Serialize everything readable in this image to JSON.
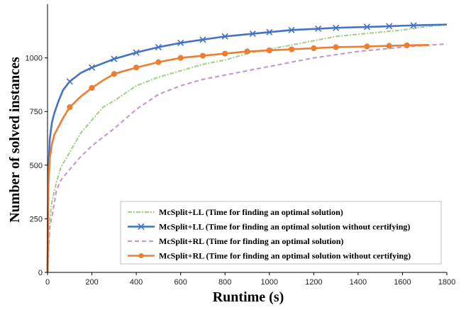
{
  "chart_data": {
    "type": "line",
    "xlabel": "Runtime (s)",
    "ylabel": "Number of solved instances",
    "xlim": [
      0,
      1800
    ],
    "ylim": [
      0,
      1250
    ],
    "x_ticks": [
      0,
      200,
      400,
      600,
      800,
      1000,
      1200,
      1400,
      1600,
      1800
    ],
    "y_ticks": [
      0,
      250,
      500,
      750,
      1000
    ],
    "grid": false,
    "legend_position": "bottom-right",
    "series": [
      {
        "name": "McSplit+LL (Time for finding an optimal solution)",
        "color": "#a8d08d",
        "style": "dash-dot",
        "marker": "none",
        "x": [
          0,
          10,
          20,
          40,
          60,
          100,
          150,
          200,
          250,
          300,
          400,
          500,
          600,
          700,
          800,
          900,
          1000,
          1100,
          1200,
          1300,
          1400,
          1500,
          1600,
          1700,
          1800
        ],
        "y": [
          0,
          250,
          330,
          420,
          490,
          560,
          650,
          710,
          770,
          800,
          870,
          910,
          940,
          970,
          990,
          1020,
          1040,
          1060,
          1080,
          1100,
          1110,
          1120,
          1130,
          1145,
          1155
        ]
      },
      {
        "name": "McSplit+LL (Time for finding an optimal solution without certifying)",
        "color": "#4472c4",
        "style": "solid",
        "marker": "x",
        "x": [
          0,
          2,
          5,
          10,
          20,
          30,
          50,
          70,
          100,
          150,
          200,
          250,
          300,
          350,
          400,
          500,
          600,
          700,
          800,
          900,
          1000,
          1100,
          1200,
          1300,
          1400,
          1500,
          1600,
          1700,
          1800
        ],
        "y": [
          0,
          300,
          500,
          620,
          700,
          740,
          800,
          850,
          890,
          930,
          955,
          975,
          995,
          1010,
          1025,
          1050,
          1070,
          1085,
          1100,
          1110,
          1120,
          1130,
          1135,
          1140,
          1143,
          1146,
          1150,
          1153,
          1155
        ],
        "marker_x": [
          100,
          200,
          300,
          400,
          500,
          600,
          700,
          800,
          925,
          1000,
          1100,
          1220,
          1300,
          1440,
          1540,
          1650
        ]
      },
      {
        "name": "McSplit+RL (Time for finding an optimal solution)",
        "color": "#c39bd3",
        "style": "dashed",
        "marker": "none",
        "x": [
          0,
          10,
          20,
          40,
          60,
          100,
          150,
          200,
          300,
          400,
          500,
          600,
          700,
          800,
          900,
          1000,
          1100,
          1200,
          1300,
          1400,
          1500,
          1600,
          1700,
          1800
        ],
        "y": [
          0,
          210,
          260,
          380,
          430,
          480,
          540,
          590,
          670,
          760,
          830,
          870,
          900,
          920,
          940,
          960,
          980,
          1000,
          1015,
          1030,
          1040,
          1050,
          1058,
          1065
        ]
      },
      {
        "name": "McSplit+RL (Time for finding an optimal solution without certifying)",
        "color": "#ed7d31",
        "style": "solid",
        "marker": "circle",
        "x": [
          0,
          2,
          5,
          10,
          20,
          30,
          50,
          70,
          100,
          150,
          200,
          250,
          300,
          400,
          500,
          600,
          700,
          800,
          900,
          1000,
          1100,
          1200,
          1300,
          1400,
          1500,
          1600,
          1700,
          1720
        ],
        "y": [
          0,
          280,
          430,
          530,
          600,
          640,
          680,
          720,
          770,
          820,
          860,
          895,
          925,
          955,
          980,
          1000,
          1010,
          1020,
          1030,
          1035,
          1040,
          1045,
          1050,
          1052,
          1055,
          1058,
          1060,
          1060
        ],
        "marker_x": [
          100,
          200,
          300,
          400,
          500,
          600,
          700,
          800,
          900,
          1000,
          1100,
          1200,
          1300,
          1440,
          1540,
          1620
        ]
      }
    ]
  }
}
